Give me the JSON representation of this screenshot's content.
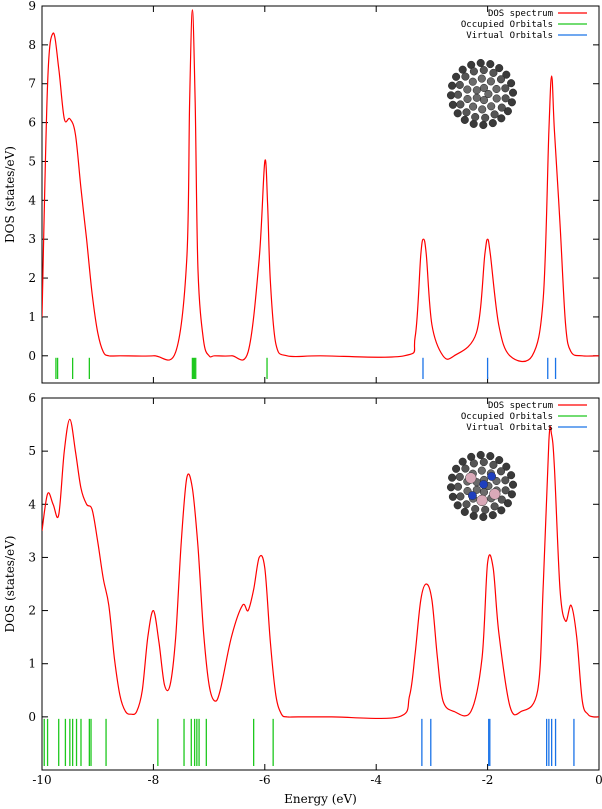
{
  "chart_data": [
    {
      "type": "line",
      "title": "",
      "xlabel": "",
      "ylabel": "DOS (states/eV)",
      "xlim": [
        -10,
        0
      ],
      "ylim": [
        -0.7,
        9
      ],
      "yticks": [
        0,
        1,
        2,
        3,
        4,
        5,
        6,
        7,
        8,
        9
      ],
      "xticks": [
        -10,
        -8,
        -6,
        -4,
        -2,
        0
      ],
      "grid": false,
      "legend_position": "top-right",
      "inset_picture": "fullerene-cage-icon",
      "series": [
        {
          "name": "DOS spectrum",
          "color": "#ff0000",
          "x": [
            -10.0,
            -9.9,
            -9.8,
            -9.7,
            -9.6,
            -9.5,
            -9.4,
            -9.3,
            -9.2,
            -9.1,
            -9.0,
            -8.9,
            -8.8,
            -8.6,
            -8.0,
            -7.6,
            -7.4,
            -7.35,
            -7.3,
            -7.25,
            -7.2,
            -7.1,
            -7.0,
            -6.9,
            -6.6,
            -6.3,
            -6.1,
            -6.0,
            -5.95,
            -5.9,
            -5.8,
            -5.6,
            -5.0,
            -3.5,
            -3.3,
            -3.2,
            -3.15,
            -3.1,
            -3.0,
            -2.8,
            -2.6,
            -2.2,
            -2.05,
            -2.0,
            -1.95,
            -1.8,
            -1.6,
            -1.2,
            -1.0,
            -0.9,
            -0.85,
            -0.8,
            -0.7,
            -0.6,
            -0.5,
            -0.3,
            0.0
          ],
          "y": [
            1.0,
            7.0,
            8.3,
            7.4,
            6.1,
            6.1,
            5.7,
            4.3,
            3.0,
            1.6,
            0.6,
            0.1,
            0.0,
            0.0,
            0.0,
            0.1,
            2.5,
            6.5,
            8.9,
            6.5,
            2.2,
            0.4,
            0.0,
            0.0,
            0.0,
            0.1,
            2.5,
            5.0,
            3.9,
            1.9,
            0.3,
            0.0,
            0.0,
            0.0,
            0.5,
            2.6,
            3.0,
            2.6,
            0.8,
            0.0,
            0.0,
            0.6,
            2.6,
            3.0,
            2.6,
            0.8,
            0.0,
            0.0,
            1.5,
            5.8,
            7.2,
            5.8,
            3.4,
            0.8,
            0.1,
            0.0,
            0.0
          ]
        },
        {
          "name": "Occupied Orbitals",
          "color": "#1ec81e",
          "energies": [
            -9.75,
            -9.72,
            -9.45,
            -9.15,
            -7.3,
            -7.28,
            -7.26,
            -7.24,
            -5.96
          ]
        },
        {
          "name": "Virtual Orbitals",
          "color": "#1a73e8",
          "energies": [
            -3.16,
            -2.0,
            -0.92,
            -0.78
          ]
        }
      ]
    },
    {
      "type": "line",
      "title": "",
      "xlabel": "Energy (eV)",
      "ylabel": "DOS (states/eV)",
      "xlim": [
        -10,
        0
      ],
      "ylim": [
        -1,
        6
      ],
      "yticks": [
        0,
        1,
        2,
        3,
        4,
        5,
        6
      ],
      "xticks": [
        -10,
        -8,
        -6,
        -4,
        -2,
        0
      ],
      "grid": false,
      "legend_position": "top-right",
      "inset_picture": "fullerene-with-cluster-icon",
      "series": [
        {
          "name": "DOS spectrum",
          "color": "#ff0000",
          "x": [
            -10.0,
            -9.9,
            -9.8,
            -9.7,
            -9.6,
            -9.5,
            -9.4,
            -9.3,
            -9.2,
            -9.1,
            -9.0,
            -8.9,
            -8.8,
            -8.7,
            -8.6,
            -8.5,
            -8.4,
            -8.3,
            -8.2,
            -8.1,
            -8.0,
            -7.9,
            -7.8,
            -7.7,
            -7.6,
            -7.5,
            -7.4,
            -7.3,
            -7.2,
            -7.1,
            -7.0,
            -6.9,
            -6.8,
            -6.6,
            -6.4,
            -6.3,
            -6.2,
            -6.1,
            -6.0,
            -5.9,
            -5.8,
            -5.7,
            -5.6,
            -5.4,
            -4.8,
            -3.6,
            -3.4,
            -3.3,
            -3.2,
            -3.1,
            -3.0,
            -2.9,
            -2.8,
            -2.6,
            -2.3,
            -2.1,
            -2.0,
            -1.9,
            -1.8,
            -1.6,
            -1.4,
            -1.1,
            -1.0,
            -0.9,
            -0.85,
            -0.8,
            -0.7,
            -0.6,
            -0.5,
            -0.4,
            -0.3,
            -0.2,
            -0.1,
            0.0
          ],
          "y": [
            3.5,
            4.2,
            4.0,
            3.8,
            5.0,
            5.6,
            5.0,
            4.3,
            4.0,
            3.9,
            3.3,
            2.6,
            2.1,
            1.1,
            0.4,
            0.1,
            0.05,
            0.1,
            0.5,
            1.5,
            2.0,
            1.4,
            0.6,
            0.6,
            1.5,
            3.3,
            4.5,
            4.3,
            3.2,
            1.6,
            0.6,
            0.3,
            0.5,
            1.5,
            2.1,
            2.0,
            2.4,
            3.0,
            2.8,
            1.4,
            0.4,
            0.05,
            0.0,
            0.0,
            0.0,
            0.0,
            0.4,
            1.2,
            2.2,
            2.5,
            2.2,
            1.1,
            0.3,
            0.1,
            0.1,
            1.1,
            2.9,
            2.8,
            1.6,
            0.2,
            0.1,
            0.5,
            2.5,
            5.2,
            5.3,
            4.7,
            2.4,
            1.8,
            2.1,
            1.5,
            0.3,
            0.05,
            0.0,
            0.0
          ]
        },
        {
          "name": "Occupied Orbitals",
          "color": "#1ec81e",
          "energies": [
            -9.96,
            -9.9,
            -9.7,
            -9.58,
            -9.5,
            -9.45,
            -9.38,
            -9.3,
            -9.15,
            -9.12,
            -8.85,
            -7.92,
            -7.45,
            -7.32,
            -7.26,
            -7.22,
            -7.18,
            -7.05,
            -6.2,
            -5.85
          ]
        },
        {
          "name": "Virtual Orbitals",
          "color": "#1a73e8",
          "energies": [
            -3.18,
            -3.02,
            -1.98,
            -1.96,
            -0.94,
            -0.9,
            -0.85,
            -0.78,
            -0.45
          ]
        }
      ]
    }
  ]
}
